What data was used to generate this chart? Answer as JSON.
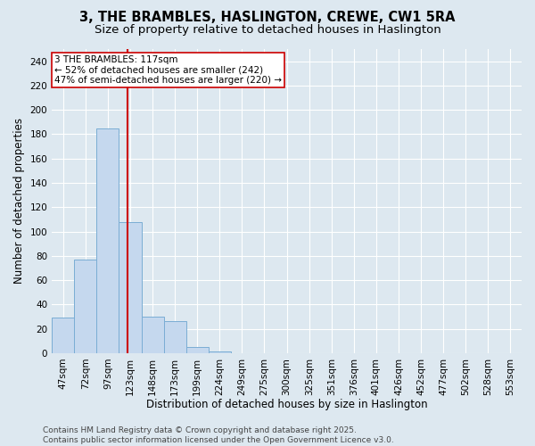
{
  "title1": "3, THE BRAMBLES, HASLINGTON, CREWE, CW1 5RA",
  "title2": "Size of property relative to detached houses in Haslington",
  "xlabel": "Distribution of detached houses by size in Haslington",
  "ylabel": "Number of detached properties",
  "categories": [
    "47sqm",
    "72sqm",
    "97sqm",
    "123sqm",
    "148sqm",
    "173sqm",
    "199sqm",
    "224sqm",
    "249sqm",
    "275sqm",
    "300sqm",
    "325sqm",
    "351sqm",
    "376sqm",
    "401sqm",
    "426sqm",
    "452sqm",
    "477sqm",
    "502sqm",
    "528sqm",
    "553sqm"
  ],
  "bar_values": [
    29,
    77,
    185,
    108,
    30,
    26,
    5,
    1,
    0,
    0,
    0,
    0,
    0,
    0,
    0,
    0,
    0,
    0,
    0,
    0,
    0
  ],
  "bar_color": "#c5d8ee",
  "bar_edge_color": "#7aadd4",
  "background_color": "#dde8f0",
  "vline_color": "#cc0000",
  "annotation_text": "3 THE BRAMBLES: 117sqm\n← 52% of detached houses are smaller (242)\n47% of semi-detached houses are larger (220) →",
  "annotation_box_color": "#ffffff",
  "annotation_box_edge": "#cc0000",
  "ylim": [
    0,
    250
  ],
  "yticks": [
    0,
    20,
    40,
    60,
    80,
    100,
    120,
    140,
    160,
    180,
    200,
    220,
    240
  ],
  "footer": "Contains HM Land Registry data © Crown copyright and database right 2025.\nContains public sector information licensed under the Open Government Licence v3.0.",
  "grid_color": "#ffffff",
  "title1_fontsize": 10.5,
  "title2_fontsize": 9.5,
  "xlabel_fontsize": 8.5,
  "ylabel_fontsize": 8.5,
  "tick_fontsize": 7.5,
  "annotation_fontsize": 7.5,
  "footer_fontsize": 6.5
}
